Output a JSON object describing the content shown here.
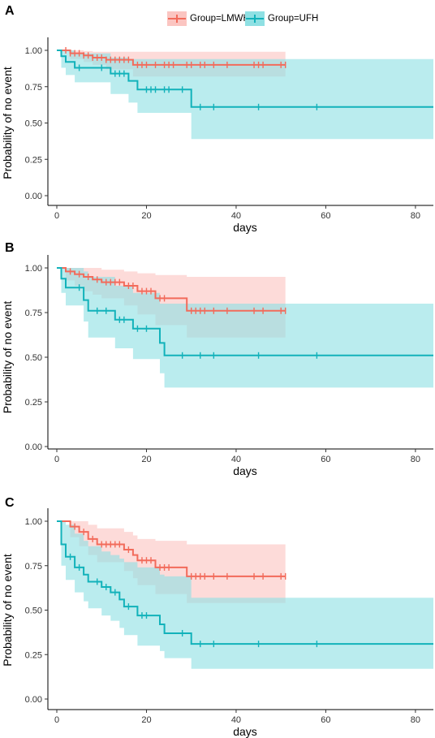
{
  "legend": {
    "groups": [
      {
        "label": "Group=LMWH",
        "color": "#F26B5B",
        "band": "#FBC5C1"
      },
      {
        "label": "Group=UFH",
        "color": "#12B2BA",
        "band": "#8FE0E3"
      }
    ]
  },
  "chart_data": [
    {
      "type": "line",
      "subtype": "kaplan-meier",
      "panel_label": "A",
      "xlabel": "days",
      "ylabel": "Probability of no event",
      "xlim": [
        0,
        84
      ],
      "ylim": [
        0,
        1
      ],
      "xticks": [
        0,
        20,
        40,
        60,
        80
      ],
      "yticks": [
        "0.00",
        "0.25",
        "0.50",
        "0.75",
        "1.00"
      ],
      "series": [
        {
          "name": "Group=LMWH",
          "color": "#F26B5B",
          "band_color": "#FBC5C1",
          "steps": [
            [
              0,
              1.0
            ],
            [
              3,
              0.98
            ],
            [
              6,
              0.965
            ],
            [
              8,
              0.95
            ],
            [
              11,
              0.935
            ],
            [
              17,
              0.9
            ],
            [
              51,
              0.9
            ]
          ],
          "censor_x": [
            2,
            3,
            4,
            5,
            6,
            7,
            8,
            9,
            10,
            11,
            12,
            13,
            14,
            15,
            16,
            18,
            19,
            20,
            22,
            24,
            25,
            26,
            29,
            30,
            32,
            33,
            35,
            38,
            44,
            45,
            46,
            50,
            51
          ],
          "ci_steps": [
            [
              0,
              1.0,
              1.0
            ],
            [
              3,
              1.0,
              0.94
            ],
            [
              6,
              0.995,
              0.92
            ],
            [
              8,
              0.99,
              0.9
            ],
            [
              11,
              0.99,
              0.87
            ],
            [
              17,
              0.99,
              0.82
            ],
            [
              51,
              0.99,
              0.82
            ]
          ]
        },
        {
          "name": "Group=UFH",
          "color": "#12B2BA",
          "band_color": "#8FE0E3",
          "steps": [
            [
              0,
              1.0
            ],
            [
              1,
              0.96
            ],
            [
              2,
              0.92
            ],
            [
              4,
              0.88
            ],
            [
              12,
              0.84
            ],
            [
              16,
              0.79
            ],
            [
              18,
              0.73
            ],
            [
              30,
              0.61
            ],
            [
              84,
              0.61
            ]
          ],
          "censor_x": [
            5,
            10,
            13,
            14,
            15,
            20,
            21,
            22,
            24,
            25,
            28,
            32,
            35,
            45,
            58
          ],
          "ci_steps": [
            [
              0,
              1.0,
              1.0
            ],
            [
              1,
              1.0,
              0.88
            ],
            [
              2,
              1.0,
              0.83
            ],
            [
              4,
              0.98,
              0.78
            ],
            [
              12,
              0.95,
              0.7
            ],
            [
              16,
              0.94,
              0.64
            ],
            [
              18,
              0.94,
              0.57
            ],
            [
              30,
              0.94,
              0.39
            ],
            [
              84,
              0.94,
              0.39
            ]
          ]
        }
      ]
    },
    {
      "type": "line",
      "subtype": "kaplan-meier",
      "panel_label": "B",
      "xlabel": "days",
      "ylabel": "Probability of no event",
      "xlim": [
        0,
        84
      ],
      "ylim": [
        0,
        1
      ],
      "xticks": [
        0,
        20,
        40,
        60,
        80
      ],
      "yticks": [
        "0.00",
        "0.25",
        "0.50",
        "0.75",
        "1.00"
      ],
      "series": [
        {
          "name": "Group=LMWH",
          "color": "#F26B5B",
          "band_color": "#FBC5C1",
          "steps": [
            [
              0,
              1.0
            ],
            [
              2,
              0.98
            ],
            [
              4,
              0.965
            ],
            [
              6,
              0.95
            ],
            [
              8,
              0.935
            ],
            [
              10,
              0.92
            ],
            [
              15,
              0.9
            ],
            [
              18,
              0.87
            ],
            [
              22,
              0.83
            ],
            [
              29,
              0.76
            ],
            [
              51,
              0.76
            ]
          ],
          "censor_x": [
            3,
            5,
            7,
            9,
            11,
            12,
            13,
            14,
            16,
            17,
            19,
            20,
            21,
            23,
            24,
            30,
            31,
            32,
            33,
            35,
            38,
            44,
            46,
            50,
            51
          ],
          "ci_steps": [
            [
              0,
              1.0,
              1.0
            ],
            [
              2,
              1.0,
              0.93
            ],
            [
              4,
              1.0,
              0.9
            ],
            [
              6,
              1.0,
              0.87
            ],
            [
              8,
              1.0,
              0.85
            ],
            [
              10,
              0.99,
              0.83
            ],
            [
              15,
              0.98,
              0.79
            ],
            [
              18,
              0.97,
              0.74
            ],
            [
              22,
              0.96,
              0.68
            ],
            [
              29,
              0.95,
              0.61
            ],
            [
              51,
              0.95,
              0.61
            ]
          ]
        },
        {
          "name": "Group=UFH",
          "color": "#12B2BA",
          "band_color": "#8FE0E3",
          "steps": [
            [
              0,
              1.0
            ],
            [
              1,
              0.94
            ],
            [
              2,
              0.89
            ],
            [
              6,
              0.82
            ],
            [
              7,
              0.76
            ],
            [
              13,
              0.71
            ],
            [
              17,
              0.66
            ],
            [
              23,
              0.58
            ],
            [
              24,
              0.51
            ],
            [
              84,
              0.51
            ]
          ],
          "censor_x": [
            5,
            9,
            11,
            14,
            15,
            18,
            20,
            28,
            32,
            35,
            45,
            58
          ],
          "ci_steps": [
            [
              0,
              1.0,
              1.0
            ],
            [
              1,
              1.0,
              0.86
            ],
            [
              2,
              1.0,
              0.79
            ],
            [
              6,
              0.98,
              0.7
            ],
            [
              7,
              0.95,
              0.61
            ],
            [
              13,
              0.9,
              0.55
            ],
            [
              17,
              0.86,
              0.49
            ],
            [
              23,
              0.8,
              0.41
            ],
            [
              24,
              0.8,
              0.33
            ],
            [
              84,
              0.8,
              0.33
            ]
          ]
        }
      ]
    },
    {
      "type": "line",
      "subtype": "kaplan-meier",
      "panel_label": "C",
      "xlabel": "days",
      "ylabel": "Probability of no event",
      "xlim": [
        0,
        84
      ],
      "ylim": [
        0,
        1
      ],
      "xticks": [
        0,
        20,
        40,
        60,
        80
      ],
      "yticks": [
        "0.00",
        "0.25",
        "0.50",
        "0.75",
        "1.00"
      ],
      "series": [
        {
          "name": "Group=LMWH",
          "color": "#F26B5B",
          "band_color": "#FBC5C1",
          "steps": [
            [
              0,
              1.0
            ],
            [
              3,
              0.97
            ],
            [
              5,
              0.94
            ],
            [
              7,
              0.9
            ],
            [
              9,
              0.87
            ],
            [
              15,
              0.84
            ],
            [
              17,
              0.81
            ],
            [
              18,
              0.78
            ],
            [
              22,
              0.74
            ],
            [
              29,
              0.69
            ],
            [
              51,
              0.69
            ]
          ],
          "censor_x": [
            4,
            6,
            8,
            10,
            11,
            12,
            13,
            14,
            16,
            19,
            20,
            21,
            23,
            24,
            25,
            30,
            31,
            32,
            33,
            35,
            38,
            44,
            46,
            50,
            51
          ],
          "ci_steps": [
            [
              0,
              1.0,
              1.0
            ],
            [
              3,
              1.0,
              0.91
            ],
            [
              5,
              1.0,
              0.86
            ],
            [
              7,
              0.98,
              0.81
            ],
            [
              9,
              0.96,
              0.77
            ],
            [
              15,
              0.94,
              0.72
            ],
            [
              17,
              0.92,
              0.68
            ],
            [
              18,
              0.9,
              0.64
            ],
            [
              22,
              0.89,
              0.59
            ],
            [
              29,
              0.87,
              0.54
            ],
            [
              51,
              0.87,
              0.54
            ]
          ]
        },
        {
          "name": "Group=UFH",
          "color": "#12B2BA",
          "band_color": "#8FE0E3",
          "steps": [
            [
              0,
              1.0
            ],
            [
              1,
              0.87
            ],
            [
              2,
              0.8
            ],
            [
              4,
              0.74
            ],
            [
              6,
              0.7
            ],
            [
              7,
              0.66
            ],
            [
              10,
              0.63
            ],
            [
              12,
              0.6
            ],
            [
              14,
              0.56
            ],
            [
              15,
              0.52
            ],
            [
              18,
              0.47
            ],
            [
              23,
              0.42
            ],
            [
              24,
              0.37
            ],
            [
              30,
              0.31
            ],
            [
              84,
              0.31
            ]
          ],
          "censor_x": [
            3,
            5,
            9,
            11,
            13,
            16,
            19,
            20,
            28,
            32,
            35,
            45,
            58
          ],
          "ci_steps": [
            [
              0,
              1.0,
              1.0
            ],
            [
              1,
              1.0,
              0.75
            ],
            [
              2,
              0.98,
              0.67
            ],
            [
              4,
              0.93,
              0.6
            ],
            [
              6,
              0.89,
              0.55
            ],
            [
              7,
              0.86,
              0.51
            ],
            [
              10,
              0.83,
              0.47
            ],
            [
              12,
              0.81,
              0.44
            ],
            [
              14,
              0.79,
              0.4
            ],
            [
              15,
              0.77,
              0.36
            ],
            [
              18,
              0.74,
              0.3
            ],
            [
              23,
              0.7,
              0.27
            ],
            [
              24,
              0.69,
              0.23
            ],
            [
              30,
              0.57,
              0.17
            ],
            [
              84,
              0.57,
              0.17
            ]
          ]
        }
      ]
    }
  ]
}
